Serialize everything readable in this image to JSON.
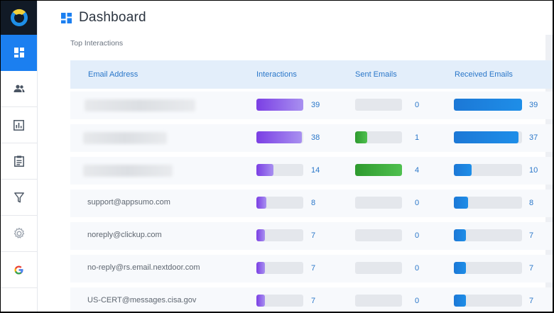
{
  "header": {
    "title": "Dashboard"
  },
  "section": {
    "title": "Top Interactions"
  },
  "colors": {
    "accent": "#1b7ff0",
    "interactions": "#7b3fe4",
    "sent": "#2e9a2e",
    "received": "#1c78d6"
  },
  "sidebar": {
    "items": [
      {
        "name": "dashboard-icon",
        "active": true
      },
      {
        "name": "users-icon"
      },
      {
        "name": "bar-chart-icon"
      },
      {
        "name": "clipboard-icon"
      },
      {
        "name": "filter-icon"
      },
      {
        "name": "gear-icon"
      },
      {
        "name": "google-icon"
      }
    ]
  },
  "table": {
    "headers": {
      "email": "Email Address",
      "interactions": "Interactions",
      "sent": "Sent Emails",
      "received": "Received Emails"
    },
    "max": {
      "interactions": 39,
      "sent": 4,
      "received": 39
    },
    "rows": [
      {
        "email": "",
        "interactions": "39",
        "sent": "0",
        "received": "39"
      },
      {
        "email": "",
        "interactions": "38",
        "sent": "1",
        "received": "37"
      },
      {
        "email": "",
        "interactions": "14",
        "sent": "4",
        "received": "10"
      },
      {
        "email": "support@appsumo.com",
        "interactions": "8",
        "sent": "0",
        "received": "8"
      },
      {
        "email": "noreply@clickup.com",
        "interactions": "7",
        "sent": "0",
        "received": "7"
      },
      {
        "email": "no-reply@rs.email.nextdoor.com",
        "interactions": "7",
        "sent": "0",
        "received": "7"
      },
      {
        "email": "US-CERT@messages.cisa.gov",
        "interactions": "7",
        "sent": "0",
        "received": "7"
      }
    ]
  }
}
